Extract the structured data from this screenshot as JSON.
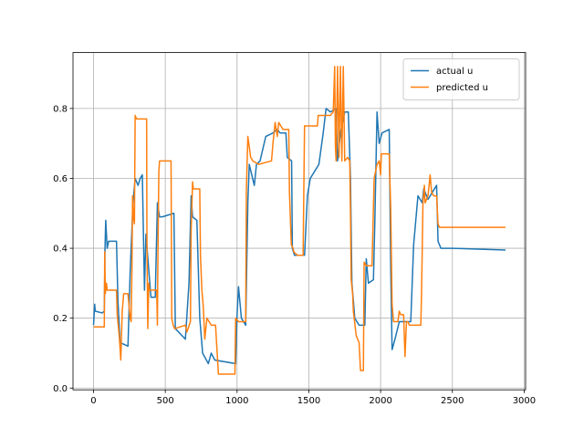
{
  "chart_data": {
    "type": "line",
    "xlim": [
      -143,
      3010
    ],
    "ylim": [
      -0.005,
      0.96
    ],
    "x_ticks": [
      0,
      500,
      1000,
      1500,
      2000,
      2500,
      3000
    ],
    "x_tick_labels": [
      "0",
      "500",
      "1000",
      "1500",
      "2000",
      "2500",
      "3000"
    ],
    "y_ticks": [
      0.0,
      0.2,
      0.4,
      0.6,
      0.8
    ],
    "y_tick_labels": [
      "0.0",
      "0.2",
      "0.4",
      "0.6",
      "0.8"
    ],
    "grid": true,
    "legend_position": "upper right",
    "series": [
      {
        "name": "actual u",
        "color": "#1f77b4",
        "points": [
          [
            0,
            0.18
          ],
          [
            8,
            0.24
          ],
          [
            12,
            0.22
          ],
          [
            60,
            0.215
          ],
          [
            75,
            0.22
          ],
          [
            80,
            0.4
          ],
          [
            85,
            0.48
          ],
          [
            95,
            0.4
          ],
          [
            105,
            0.42
          ],
          [
            160,
            0.42
          ],
          [
            170,
            0.25
          ],
          [
            185,
            0.13
          ],
          [
            240,
            0.12
          ],
          [
            255,
            0.33
          ],
          [
            275,
            0.53
          ],
          [
            290,
            0.6
          ],
          [
            310,
            0.58
          ],
          [
            325,
            0.6
          ],
          [
            340,
            0.61
          ],
          [
            355,
            0.28
          ],
          [
            365,
            0.44
          ],
          [
            400,
            0.26
          ],
          [
            430,
            0.26
          ],
          [
            445,
            0.53
          ],
          [
            460,
            0.49
          ],
          [
            480,
            0.49
          ],
          [
            560,
            0.5
          ],
          [
            570,
            0.17
          ],
          [
            640,
            0.14
          ],
          [
            665,
            0.3
          ],
          [
            680,
            0.55
          ],
          [
            690,
            0.49
          ],
          [
            720,
            0.48
          ],
          [
            740,
            0.2
          ],
          [
            760,
            0.1
          ],
          [
            800,
            0.07
          ],
          [
            820,
            0.1
          ],
          [
            845,
            0.08
          ],
          [
            990,
            0.07
          ],
          [
            1000,
            0.21
          ],
          [
            1010,
            0.29
          ],
          [
            1030,
            0.2
          ],
          [
            1060,
            0.18
          ],
          [
            1075,
            0.53
          ],
          [
            1085,
            0.64
          ],
          [
            1120,
            0.58
          ],
          [
            1135,
            0.64
          ],
          [
            1160,
            0.65
          ],
          [
            1200,
            0.72
          ],
          [
            1250,
            0.73
          ],
          [
            1280,
            0.74
          ],
          [
            1300,
            0.73
          ],
          [
            1340,
            0.73
          ],
          [
            1350,
            0.66
          ],
          [
            1380,
            0.65
          ],
          [
            1385,
            0.4
          ],
          [
            1400,
            0.38
          ],
          [
            1470,
            0.38
          ],
          [
            1490,
            0.55
          ],
          [
            1510,
            0.6
          ],
          [
            1540,
            0.62
          ],
          [
            1570,
            0.64
          ],
          [
            1600,
            0.73
          ],
          [
            1620,
            0.8
          ],
          [
            1650,
            0.79
          ],
          [
            1690,
            0.8
          ],
          [
            1700,
            0.65
          ],
          [
            1720,
            0.73
          ],
          [
            1750,
            0.79
          ],
          [
            1775,
            0.79
          ],
          [
            1790,
            0.6
          ],
          [
            1800,
            0.3
          ],
          [
            1820,
            0.2
          ],
          [
            1850,
            0.18
          ],
          [
            1890,
            0.18
          ],
          [
            1900,
            0.37
          ],
          [
            1915,
            0.3
          ],
          [
            1950,
            0.31
          ],
          [
            1960,
            0.48
          ],
          [
            1975,
            0.79
          ],
          [
            1990,
            0.7
          ],
          [
            2010,
            0.73
          ],
          [
            2060,
            0.74
          ],
          [
            2070,
            0.35
          ],
          [
            2080,
            0.11
          ],
          [
            2100,
            0.14
          ],
          [
            2130,
            0.19
          ],
          [
            2210,
            0.19
          ],
          [
            2230,
            0.41
          ],
          [
            2260,
            0.55
          ],
          [
            2290,
            0.53
          ],
          [
            2300,
            0.57
          ],
          [
            2330,
            0.54
          ],
          [
            2360,
            0.56
          ],
          [
            2390,
            0.58
          ],
          [
            2400,
            0.42
          ],
          [
            2420,
            0.4
          ],
          [
            2500,
            0.4
          ],
          [
            2870,
            0.395
          ]
        ]
      },
      {
        "name": "predicted u",
        "color": "#ff7f0e",
        "points": [
          [
            0,
            0.175
          ],
          [
            75,
            0.175
          ],
          [
            78,
            0.39
          ],
          [
            82,
            0.27
          ],
          [
            90,
            0.3
          ],
          [
            95,
            0.28
          ],
          [
            160,
            0.28
          ],
          [
            165,
            0.21
          ],
          [
            180,
            0.145
          ],
          [
            190,
            0.08
          ],
          [
            200,
            0.22
          ],
          [
            210,
            0.27
          ],
          [
            240,
            0.27
          ],
          [
            255,
            0.2
          ],
          [
            262,
            0.19
          ],
          [
            268,
            0.35
          ],
          [
            272,
            0.55
          ],
          [
            278,
            0.49
          ],
          [
            285,
            0.47
          ],
          [
            290,
            0.78
          ],
          [
            300,
            0.77
          ],
          [
            370,
            0.77
          ],
          [
            372,
            0.42
          ],
          [
            378,
            0.17
          ],
          [
            385,
            0.3
          ],
          [
            390,
            0.28
          ],
          [
            440,
            0.28
          ],
          [
            445,
            0.18
          ],
          [
            448,
            0.35
          ],
          [
            455,
            0.62
          ],
          [
            460,
            0.65
          ],
          [
            540,
            0.65
          ],
          [
            545,
            0.2
          ],
          [
            555,
            0.18
          ],
          [
            565,
            0.17
          ],
          [
            640,
            0.18
          ],
          [
            650,
            0.16
          ],
          [
            675,
            0.19
          ],
          [
            680,
            0.45
          ],
          [
            690,
            0.59
          ],
          [
            695,
            0.57
          ],
          [
            740,
            0.57
          ],
          [
            745,
            0.38
          ],
          [
            755,
            0.28
          ],
          [
            765,
            0.23
          ],
          [
            775,
            0.14
          ],
          [
            790,
            0.2
          ],
          [
            820,
            0.18
          ],
          [
            850,
            0.18
          ],
          [
            870,
            0.04
          ],
          [
            985,
            0.04
          ],
          [
            990,
            0.2
          ],
          [
            1010,
            0.19
          ],
          [
            1060,
            0.19
          ],
          [
            1065,
            0.57
          ],
          [
            1075,
            0.72
          ],
          [
            1085,
            0.69
          ],
          [
            1095,
            0.66
          ],
          [
            1110,
            0.65
          ],
          [
            1150,
            0.64
          ],
          [
            1240,
            0.65
          ],
          [
            1250,
            0.7
          ],
          [
            1265,
            0.76
          ],
          [
            1280,
            0.72
          ],
          [
            1290,
            0.76
          ],
          [
            1320,
            0.74
          ],
          [
            1360,
            0.74
          ],
          [
            1365,
            0.56
          ],
          [
            1378,
            0.41
          ],
          [
            1390,
            0.4
          ],
          [
            1395,
            0.39
          ],
          [
            1420,
            0.38
          ],
          [
            1440,
            0.38
          ],
          [
            1460,
            0.38
          ],
          [
            1470,
            0.75
          ],
          [
            1490,
            0.75
          ],
          [
            1540,
            0.75
          ],
          [
            1560,
            0.75
          ],
          [
            1565,
            0.78
          ],
          [
            1580,
            0.78
          ],
          [
            1605,
            0.78
          ],
          [
            1650,
            0.78
          ],
          [
            1670,
            0.79
          ],
          [
            1680,
            0.92
          ],
          [
            1685,
            0.69
          ],
          [
            1690,
            0.65
          ],
          [
            1700,
            0.92
          ],
          [
            1710,
            0.66
          ],
          [
            1720,
            0.92
          ],
          [
            1730,
            0.65
          ],
          [
            1740,
            0.92
          ],
          [
            1750,
            0.65
          ],
          [
            1770,
            0.66
          ],
          [
            1785,
            0.65
          ],
          [
            1790,
            0.5
          ],
          [
            1795,
            0.31
          ],
          [
            1805,
            0.27
          ],
          [
            1810,
            0.22
          ],
          [
            1830,
            0.15
          ],
          [
            1850,
            0.13
          ],
          [
            1860,
            0.05
          ],
          [
            1880,
            0.05
          ],
          [
            1885,
            0.36
          ],
          [
            1900,
            0.35
          ],
          [
            1940,
            0.35
          ],
          [
            1955,
            0.6
          ],
          [
            1975,
            0.64
          ],
          [
            1990,
            0.65
          ],
          [
            2000,
            0.61
          ],
          [
            2005,
            0.67
          ],
          [
            2060,
            0.67
          ],
          [
            2065,
            0.59
          ],
          [
            2070,
            0.52
          ],
          [
            2080,
            0.24
          ],
          [
            2090,
            0.19
          ],
          [
            2120,
            0.19
          ],
          [
            2130,
            0.22
          ],
          [
            2140,
            0.21
          ],
          [
            2160,
            0.21
          ],
          [
            2170,
            0.09
          ],
          [
            2180,
            0.19
          ],
          [
            2190,
            0.19
          ],
          [
            2200,
            0.18
          ],
          [
            2280,
            0.18
          ],
          [
            2285,
            0.27
          ],
          [
            2295,
            0.53
          ],
          [
            2305,
            0.58
          ],
          [
            2310,
            0.53
          ],
          [
            2330,
            0.55
          ],
          [
            2345,
            0.61
          ],
          [
            2355,
            0.56
          ],
          [
            2370,
            0.55
          ],
          [
            2390,
            0.55
          ],
          [
            2400,
            0.47
          ],
          [
            2410,
            0.46
          ],
          [
            2500,
            0.46
          ],
          [
            2700,
            0.46
          ],
          [
            2870,
            0.46
          ]
        ]
      }
    ]
  }
}
